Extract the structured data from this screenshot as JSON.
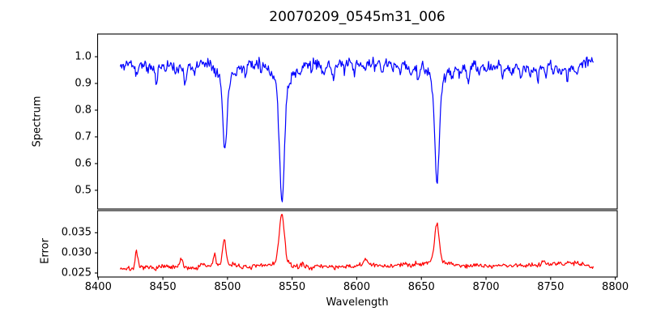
{
  "figure": {
    "title": "20070209_0545m31_006",
    "background": "#ffffff",
    "spine_color": "#000000",
    "text_color": "#000000"
  },
  "chart_data": [
    {
      "type": "line",
      "id": "spectrum",
      "ylabel": "Spectrum",
      "color": "#0000ff",
      "xlim": [
        8399.5,
        8801.5
      ],
      "ylim": [
        0.43,
        1.085
      ],
      "yticks": [
        0.5,
        0.6,
        0.7,
        0.8,
        0.9,
        1.0
      ],
      "ytick_labels": [
        "0.5",
        "0.6",
        "0.7",
        "0.8",
        "0.9",
        "1.0"
      ],
      "grid": false,
      "legend": null,
      "data_x_range": [
        8417,
        8783
      ],
      "sample_step": 0.6,
      "anchors": [
        [
          8417,
          0.96
        ],
        [
          8424,
          0.978
        ],
        [
          8430,
          0.962
        ],
        [
          8436,
          0.975
        ],
        [
          8442,
          0.958
        ],
        [
          8448,
          0.968
        ],
        [
          8454,
          0.975
        ],
        [
          8460,
          0.958
        ],
        [
          8466,
          0.972
        ],
        [
          8472,
          0.962
        ],
        [
          8478,
          0.972
        ],
        [
          8484,
          0.982
        ],
        [
          8490,
          0.972
        ],
        [
          8496,
          0.965
        ],
        [
          8503,
          0.962
        ],
        [
          8510,
          0.96
        ],
        [
          8516,
          0.978
        ],
        [
          8522,
          0.985
        ],
        [
          8528,
          0.978
        ],
        [
          8534,
          0.972
        ],
        [
          8540,
          0.97
        ],
        [
          8546,
          0.968
        ],
        [
          8552,
          0.962
        ],
        [
          8558,
          0.97
        ],
        [
          8564,
          0.975
        ],
        [
          8570,
          0.972
        ],
        [
          8576,
          0.965
        ],
        [
          8582,
          0.962
        ],
        [
          8588,
          0.975
        ],
        [
          8594,
          0.972
        ],
        [
          8600,
          0.968
        ],
        [
          8606,
          0.972
        ],
        [
          8612,
          0.978
        ],
        [
          8618,
          0.982
        ],
        [
          8624,
          0.972
        ],
        [
          8630,
          0.97
        ],
        [
          8636,
          0.975
        ],
        [
          8642,
          0.958
        ],
        [
          8648,
          0.965
        ],
        [
          8654,
          0.972
        ],
        [
          8660,
          0.972
        ],
        [
          8666,
          0.965
        ],
        [
          8672,
          0.962
        ],
        [
          8678,
          0.958
        ],
        [
          8684,
          0.962
        ],
        [
          8690,
          0.968
        ],
        [
          8696,
          0.962
        ],
        [
          8702,
          0.965
        ],
        [
          8708,
          0.97
        ],
        [
          8714,
          0.962
        ],
        [
          8720,
          0.958
        ],
        [
          8726,
          0.965
        ],
        [
          8732,
          0.962
        ],
        [
          8738,
          0.955
        ],
        [
          8744,
          0.962
        ],
        [
          8750,
          0.968
        ],
        [
          8756,
          0.96
        ],
        [
          8762,
          0.958
        ],
        [
          8768,
          0.962
        ],
        [
          8774,
          0.972
        ],
        [
          8779,
          0.985
        ],
        [
          8783,
          0.992
        ]
      ],
      "features_subtract": [
        {
          "center": 8498.0,
          "depth": 0.26,
          "sigma": 1.6,
          "wing_depth": 0.05,
          "wing_sigma": 5.0,
          "min_value": 0.655
        },
        {
          "center": 8542.1,
          "depth": 0.44,
          "sigma": 1.9,
          "wing_depth": 0.065,
          "wing_sigma": 7.0,
          "min_value": 0.465
        },
        {
          "center": 8662.1,
          "depth": 0.38,
          "sigma": 1.8,
          "wing_depth": 0.058,
          "wing_sigma": 6.0,
          "min_value": 0.53
        },
        {
          "center": 8429.5,
          "depth": 0.03,
          "sigma": 0.9
        },
        {
          "center": 8438,
          "depth": 0.025,
          "sigma": 0.8
        },
        {
          "center": 8445,
          "depth": 0.065,
          "sigma": 0.9
        },
        {
          "center": 8452,
          "depth": 0.022,
          "sigma": 0.8
        },
        {
          "center": 8460,
          "depth": 0.028,
          "sigma": 0.8
        },
        {
          "center": 8467,
          "depth": 0.075,
          "sigma": 0.9
        },
        {
          "center": 8474,
          "depth": 0.035,
          "sigma": 0.8
        },
        {
          "center": 8514,
          "depth": 0.045,
          "sigma": 0.9
        },
        {
          "center": 8520,
          "depth": 0.02,
          "sigma": 0.8
        },
        {
          "center": 8526,
          "depth": 0.022,
          "sigma": 0.8
        },
        {
          "center": 8548,
          "depth": 0.025,
          "sigma": 0.8
        },
        {
          "center": 8556,
          "depth": 0.038,
          "sigma": 0.9
        },
        {
          "center": 8565,
          "depth": 0.022,
          "sigma": 0.8
        },
        {
          "center": 8574,
          "depth": 0.025,
          "sigma": 0.8
        },
        {
          "center": 8582,
          "depth": 0.038,
          "sigma": 0.9
        },
        {
          "center": 8590,
          "depth": 0.022,
          "sigma": 0.8
        },
        {
          "center": 8598,
          "depth": 0.03,
          "sigma": 0.8
        },
        {
          "center": 8606,
          "depth": 0.025,
          "sigma": 0.8
        },
        {
          "center": 8614,
          "depth": 0.022,
          "sigma": 0.8
        },
        {
          "center": 8620,
          "depth": 0.032,
          "sigma": 0.8
        },
        {
          "center": 8628,
          "depth": 0.025,
          "sigma": 0.8
        },
        {
          "center": 8634,
          "depth": 0.028,
          "sigma": 0.8
        },
        {
          "center": 8642,
          "depth": 0.035,
          "sigma": 0.9
        },
        {
          "center": 8648,
          "depth": 0.045,
          "sigma": 1.0
        },
        {
          "center": 8674,
          "depth": 0.032,
          "sigma": 0.9
        },
        {
          "center": 8680,
          "depth": 0.028,
          "sigma": 0.8
        },
        {
          "center": 8686,
          "depth": 0.06,
          "sigma": 1.0
        },
        {
          "center": 8694,
          "depth": 0.025,
          "sigma": 0.8
        },
        {
          "center": 8700,
          "depth": 0.032,
          "sigma": 0.8
        },
        {
          "center": 8706,
          "depth": 0.025,
          "sigma": 0.8
        },
        {
          "center": 8713,
          "depth": 0.038,
          "sigma": 0.9
        },
        {
          "center": 8720,
          "depth": 0.03,
          "sigma": 0.8
        },
        {
          "center": 8727,
          "depth": 0.042,
          "sigma": 0.9
        },
        {
          "center": 8734,
          "depth": 0.028,
          "sigma": 0.8
        },
        {
          "center": 8740,
          "depth": 0.05,
          "sigma": 0.9
        },
        {
          "center": 8746,
          "depth": 0.025,
          "sigma": 0.8
        },
        {
          "center": 8752,
          "depth": 0.032,
          "sigma": 0.8
        },
        {
          "center": 8758,
          "depth": 0.028,
          "sigma": 0.8
        },
        {
          "center": 8763,
          "depth": 0.048,
          "sigma": 0.9
        },
        {
          "center": 8770,
          "depth": 0.03,
          "sigma": 0.8
        }
      ],
      "noise_sigma": 0.01,
      "noise_seed": 11
    },
    {
      "type": "line",
      "id": "error",
      "ylabel": "Error",
      "xlabel": "Wavelength",
      "color": "#ff0000",
      "xlim": [
        8399.5,
        8801.5
      ],
      "ylim": [
        0.024,
        0.0405
      ],
      "yticks": [
        0.025,
        0.03,
        0.035
      ],
      "ytick_labels": [
        "0.025",
        "0.030",
        "0.035"
      ],
      "xticks": [
        8400,
        8450,
        8500,
        8550,
        8600,
        8650,
        8700,
        8750,
        8800
      ],
      "xtick_labels": [
        "8400",
        "8450",
        "8500",
        "8550",
        "8600",
        "8650",
        "8700",
        "8750",
        "8800"
      ],
      "grid": false,
      "legend": null,
      "data_x_range": [
        8417,
        8783
      ],
      "sample_step": 0.6,
      "anchors": [
        [
          8417,
          0.0262
        ],
        [
          8426,
          0.026
        ],
        [
          8434,
          0.0264
        ],
        [
          8442,
          0.0262
        ],
        [
          8450,
          0.0266
        ],
        [
          8458,
          0.0263
        ],
        [
          8466,
          0.0265
        ],
        [
          8474,
          0.0262
        ],
        [
          8482,
          0.0266
        ],
        [
          8490,
          0.0269
        ],
        [
          8498,
          0.0272
        ],
        [
          8506,
          0.0271
        ],
        [
          8514,
          0.0263
        ],
        [
          8522,
          0.0266
        ],
        [
          8530,
          0.027
        ],
        [
          8538,
          0.0274
        ],
        [
          8546,
          0.0272
        ],
        [
          8554,
          0.0265
        ],
        [
          8562,
          0.0264
        ],
        [
          8570,
          0.0266
        ],
        [
          8578,
          0.0267
        ],
        [
          8586,
          0.0263
        ],
        [
          8594,
          0.0266
        ],
        [
          8602,
          0.0268
        ],
        [
          8610,
          0.027
        ],
        [
          8618,
          0.0267
        ],
        [
          8626,
          0.0268
        ],
        [
          8634,
          0.027
        ],
        [
          8642,
          0.0271
        ],
        [
          8650,
          0.0274
        ],
        [
          8658,
          0.0278
        ],
        [
          8666,
          0.0276
        ],
        [
          8674,
          0.0272
        ],
        [
          8682,
          0.0268
        ],
        [
          8690,
          0.0266
        ],
        [
          8698,
          0.0268
        ],
        [
          8706,
          0.0267
        ],
        [
          8714,
          0.0269
        ],
        [
          8722,
          0.0268
        ],
        [
          8730,
          0.0269
        ],
        [
          8738,
          0.0271
        ],
        [
          8746,
          0.027
        ],
        [
          8754,
          0.0272
        ],
        [
          8762,
          0.0274
        ],
        [
          8769,
          0.0277
        ],
        [
          8776,
          0.0271
        ],
        [
          8783,
          0.0264
        ]
      ],
      "features_add": [
        {
          "center": 8429.5,
          "depth": 0.004,
          "sigma": 1.0,
          "peak_value": 0.0301
        },
        {
          "center": 8464.0,
          "depth": 0.0018,
          "sigma": 1.2
        },
        {
          "center": 8480.0,
          "depth": 0.001,
          "sigma": 1.0
        },
        {
          "center": 8490.0,
          "depth": 0.0028,
          "sigma": 0.9
        },
        {
          "center": 8497.5,
          "depth": 0.0058,
          "sigma": 1.3,
          "peak_value": 0.033
        },
        {
          "center": 8542.0,
          "depth": 0.0122,
          "sigma": 2.0,
          "peak_value": 0.0396
        },
        {
          "center": 8558.0,
          "depth": 0.0008,
          "sigma": 1.5
        },
        {
          "center": 8607.0,
          "depth": 0.0014,
          "sigma": 1.8
        },
        {
          "center": 8662.0,
          "depth": 0.0096,
          "sigma": 1.8,
          "peak_value": 0.0373
        },
        {
          "center": 8692.0,
          "depth": 0.0008,
          "sigma": 1.5
        },
        {
          "center": 8745.0,
          "depth": 0.0012,
          "sigma": 1.5
        }
      ],
      "noise_sigma": 0.0003,
      "noise_seed": 7
    }
  ]
}
